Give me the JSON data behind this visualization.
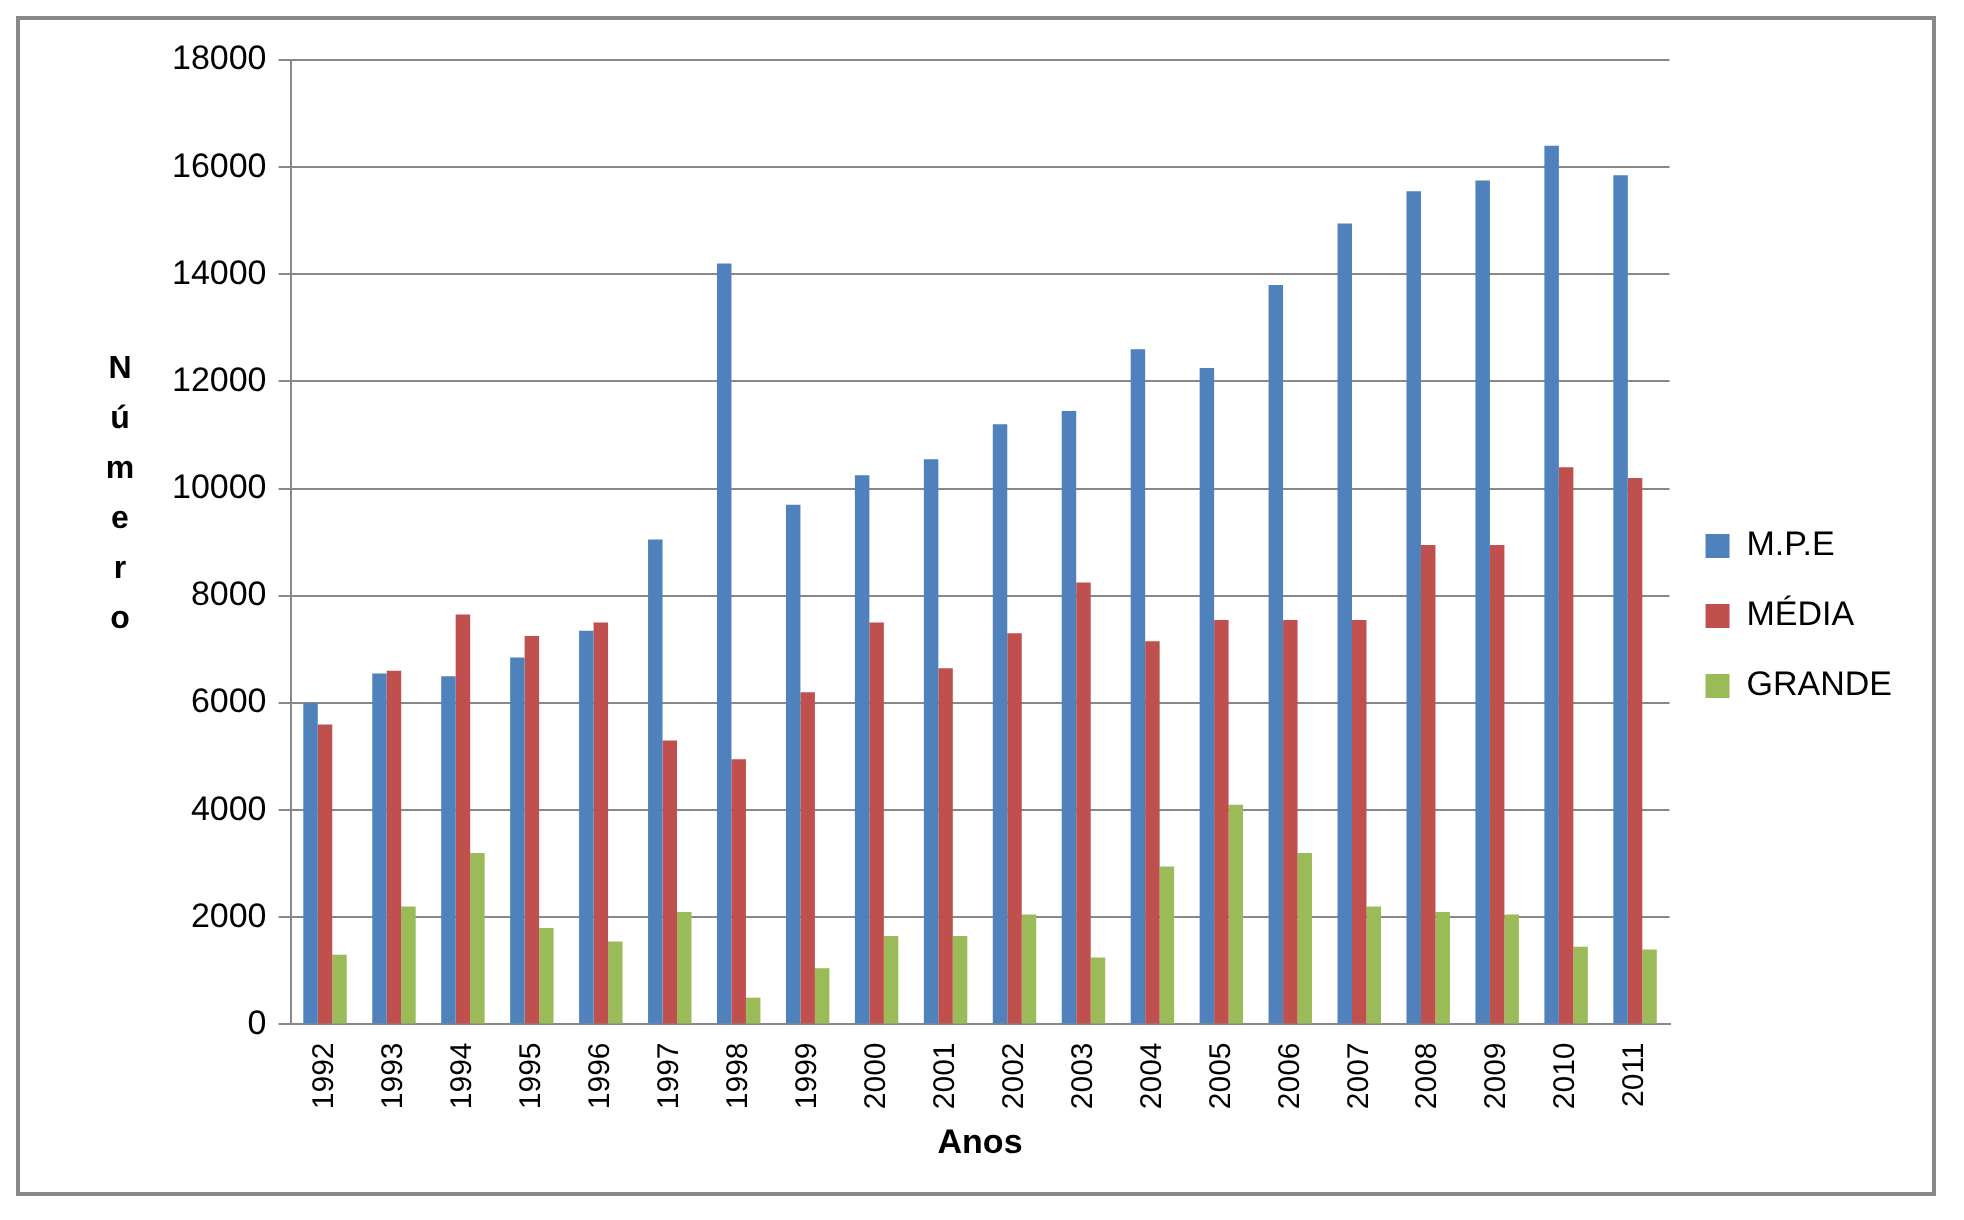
{
  "chart_data": {
    "type": "bar",
    "xlabel": "Anos",
    "ylabel": "Número",
    "categories": [
      "1992",
      "1993",
      "1994",
      "1995",
      "1996",
      "1997",
      "1998",
      "1999",
      "2000",
      "2001",
      "2002",
      "2003",
      "2004",
      "2005",
      "2006",
      "2007",
      "2008",
      "2009",
      "2010",
      "2011"
    ],
    "series": [
      {
        "name": "M.P.E",
        "color": "#4f81bd",
        "values": [
          6000,
          6550,
          6500,
          6850,
          7350,
          9050,
          14200,
          9700,
          10250,
          10550,
          11200,
          11450,
          12600,
          12250,
          13800,
          14950,
          15550,
          15750,
          16400,
          15850
        ]
      },
      {
        "name": "MÉDIA",
        "color": "#c0504d",
        "values": [
          5600,
          6600,
          7650,
          7250,
          7500,
          5300,
          4950,
          6200,
          7500,
          6650,
          7300,
          8250,
          7150,
          7550,
          7550,
          7550,
          8950,
          8950,
          10400,
          10200
        ]
      },
      {
        "name": "GRANDE",
        "color": "#9bbb59",
        "values": [
          1300,
          2200,
          3200,
          1800,
          1550,
          2100,
          500,
          1050,
          1650,
          1650,
          2050,
          1250,
          2950,
          4100,
          3200,
          2200,
          2100,
          2050,
          1450,
          1400
        ]
      }
    ],
    "ylim": [
      0,
      18000
    ],
    "yticks": [
      0,
      2000,
      4000,
      6000,
      8000,
      10000,
      12000,
      14000,
      16000,
      18000
    ],
    "grid": "y",
    "legend": "right"
  }
}
